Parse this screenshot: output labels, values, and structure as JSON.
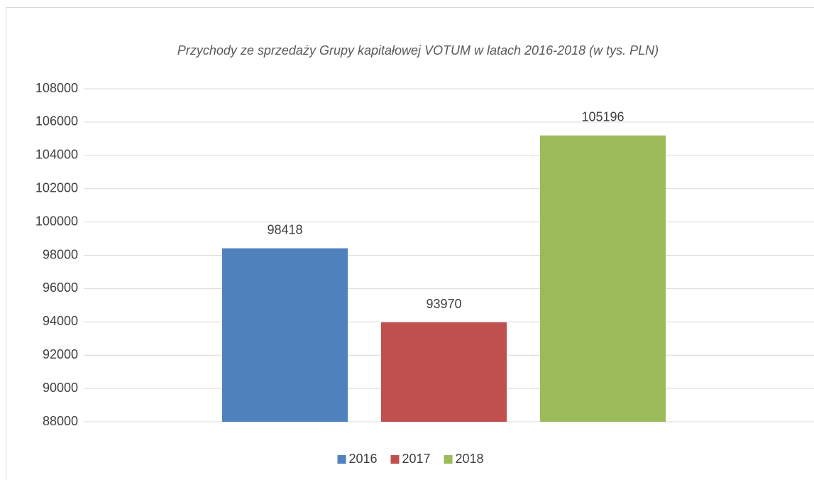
{
  "chart_data": {
    "type": "bar",
    "title": "Przychody ze sprzedaży Grupy kapitałowej  VOTUM  w latach 2016-2018 (w tys. PLN)",
    "categories": [
      null
    ],
    "series": [
      {
        "name": "2016",
        "color": "#4f81bd",
        "values": [
          98418
        ]
      },
      {
        "name": "2017",
        "color": "#c0504d",
        "values": [
          93970
        ]
      },
      {
        "name": "2018",
        "color": "#9bbb59",
        "values": [
          105196
        ]
      }
    ],
    "ylim": [
      88000,
      108000
    ],
    "yticks": [
      88000,
      90000,
      92000,
      94000,
      96000,
      98000,
      100000,
      102000,
      104000,
      106000,
      108000
    ],
    "grid": true,
    "legend": "bottom",
    "data_labels": true
  }
}
